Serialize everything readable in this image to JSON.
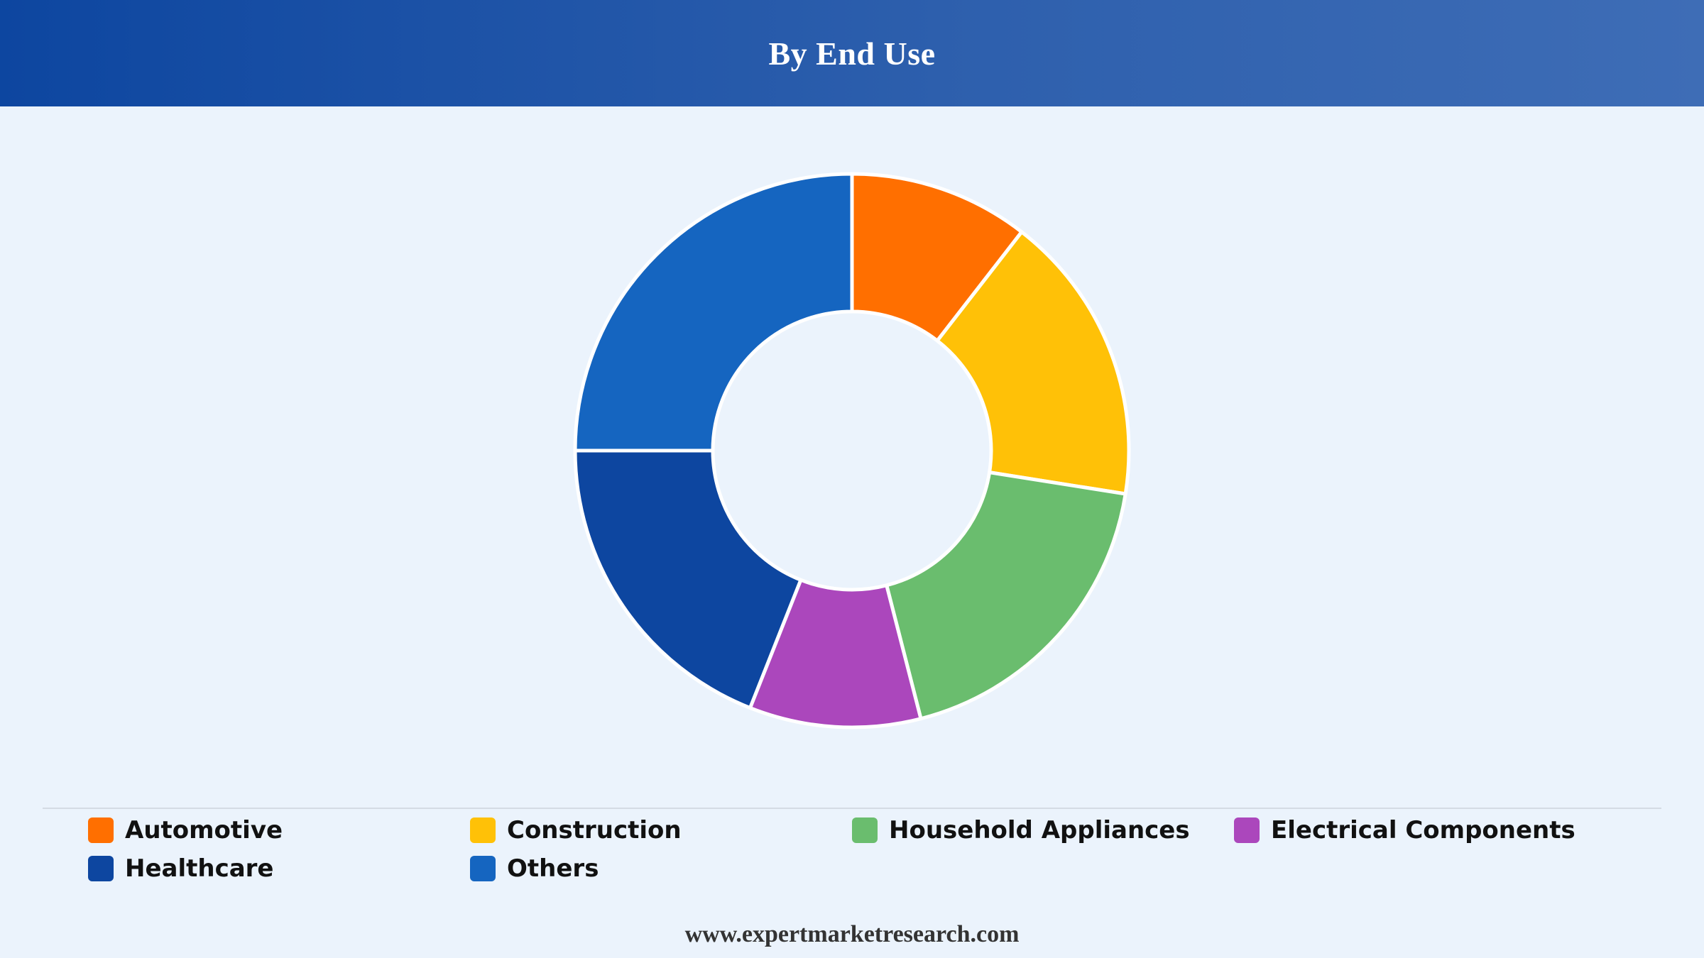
{
  "header": {
    "title": "By End Use"
  },
  "chart_data": {
    "type": "pie",
    "variant": "donut",
    "title": "By End Use",
    "categories": [
      "Automotive",
      "Construction",
      "Household Appliances",
      "Electrical Components",
      "Healthcare",
      "Others"
    ],
    "values": [
      10.5,
      17,
      18.5,
      10,
      19,
      25
    ],
    "colors": [
      "#ff6f00",
      "#ffc107",
      "#6abd6e",
      "#ab47bc",
      "#0d46a0",
      "#1565c0"
    ],
    "legend_position": "bottom",
    "slice_order": "clockwise from top"
  },
  "legend": {
    "items": [
      {
        "label": "Automotive",
        "color": "#ff6f00"
      },
      {
        "label": "Construction",
        "color": "#ffc107"
      },
      {
        "label": "Household Appliances",
        "color": "#6abd6e"
      },
      {
        "label": "Electrical Components",
        "color": "#ab47bc"
      },
      {
        "label": "Healthcare",
        "color": "#0d46a0"
      },
      {
        "label": "Others",
        "color": "#1565c0"
      }
    ]
  },
  "footer": {
    "source": "www.expertmarketresearch.com"
  }
}
